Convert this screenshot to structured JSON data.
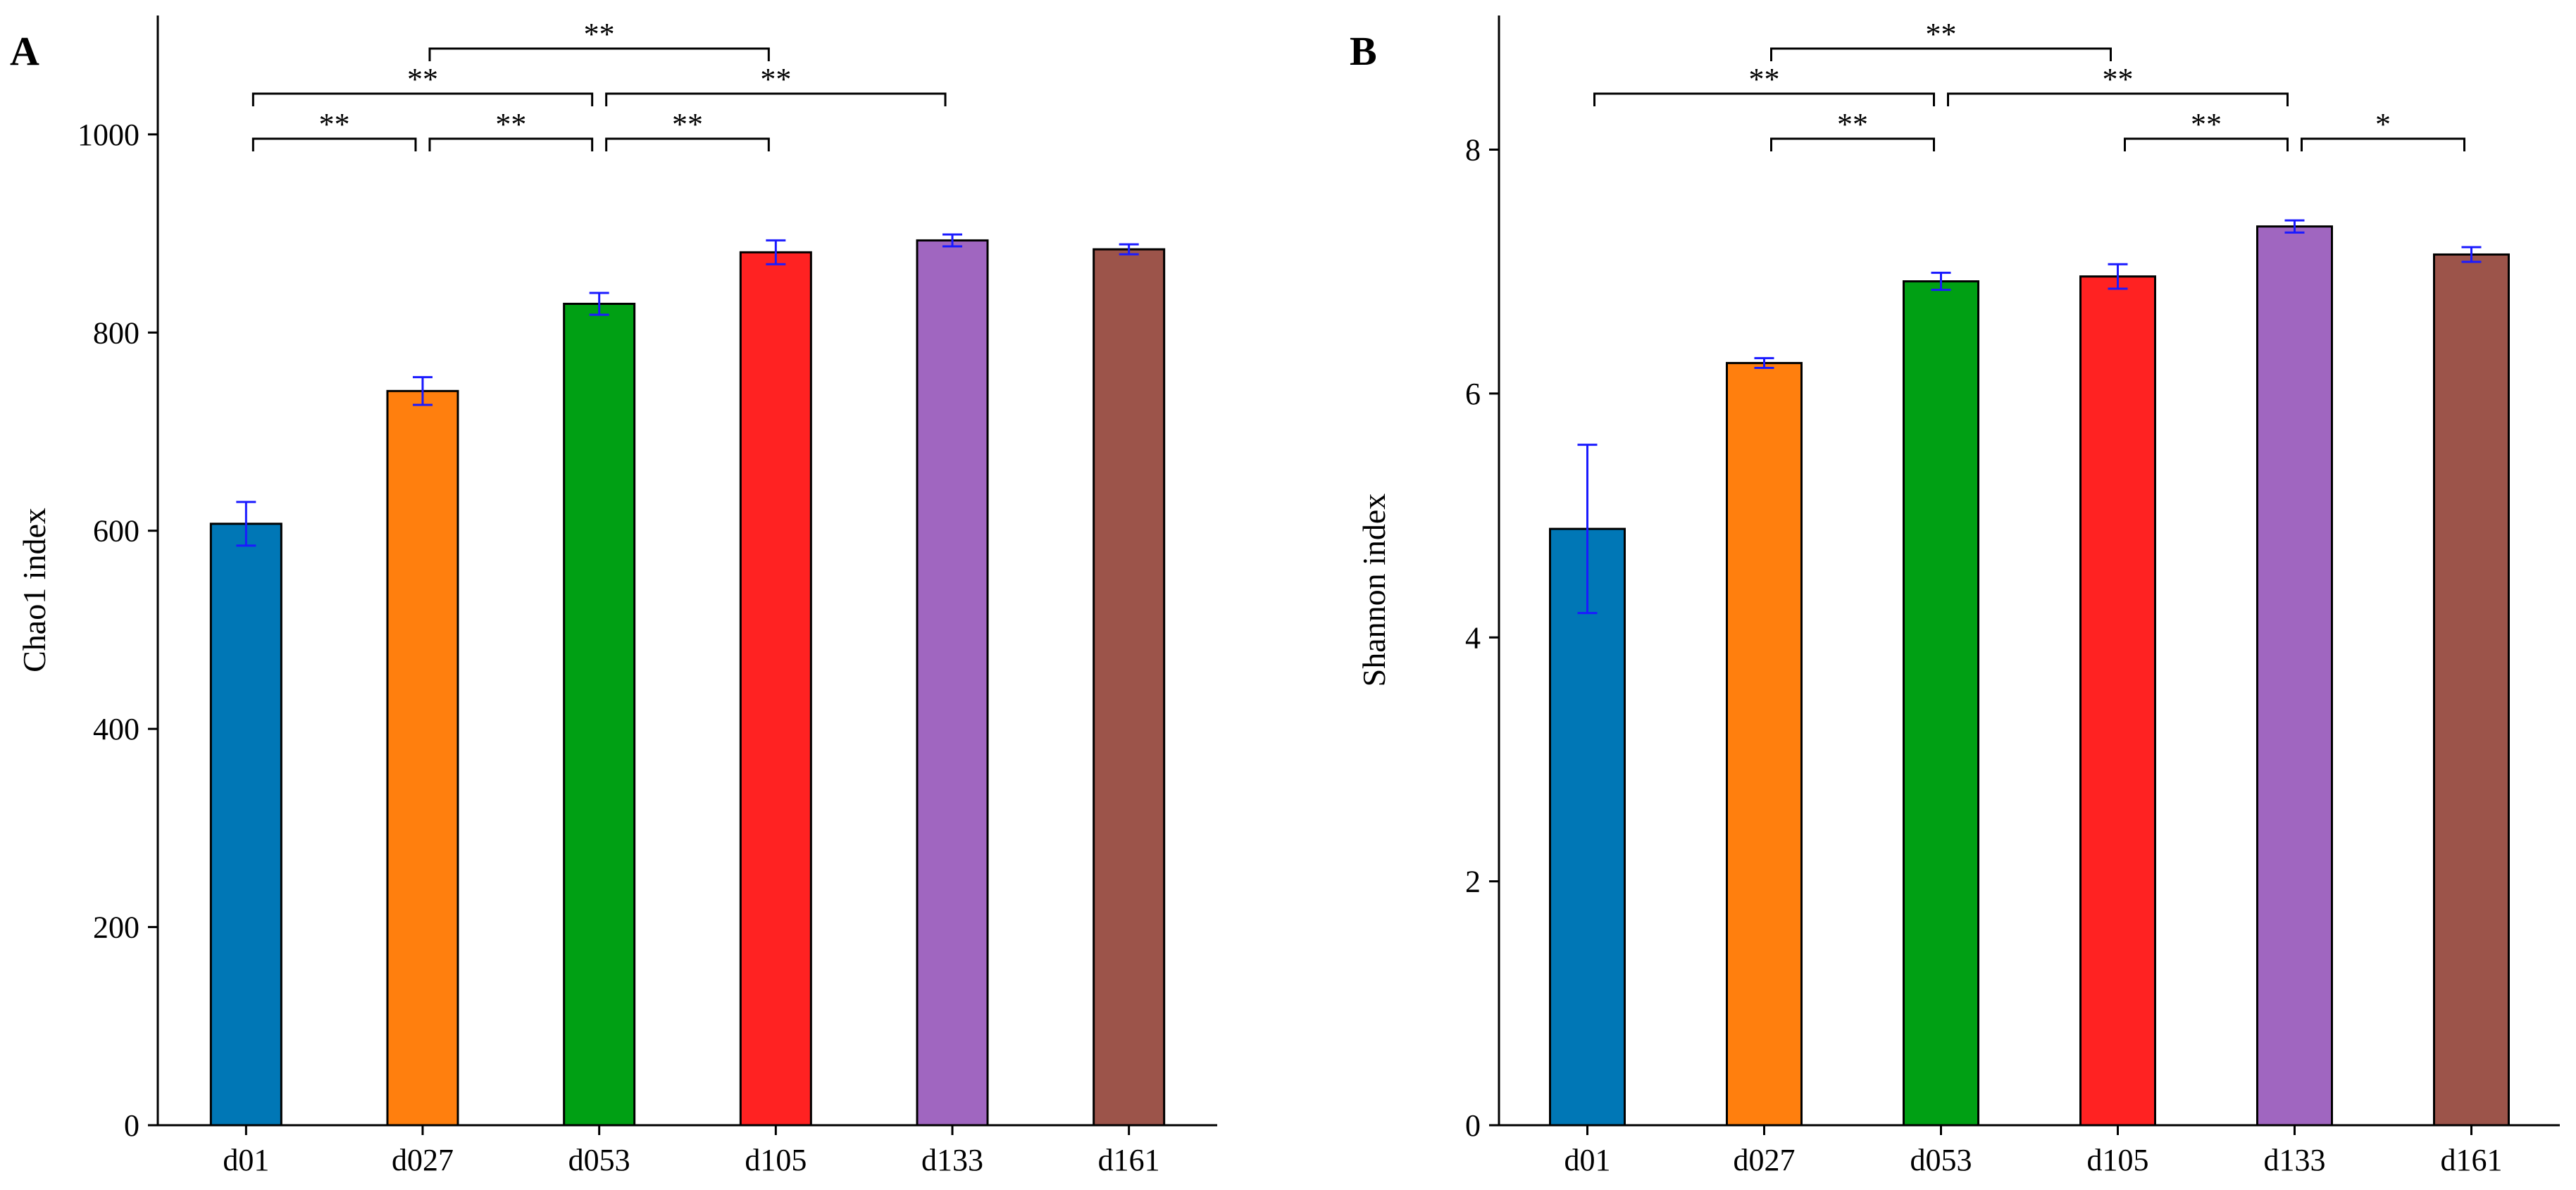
{
  "chart_data": [
    {
      "type": "bar",
      "panel_label": "A",
      "categories": [
        "d01",
        "d027",
        "d053",
        "d105",
        "d133",
        "d161"
      ],
      "values": [
        607,
        741,
        829,
        881,
        893,
        884
      ],
      "errors": [
        22,
        14,
        11,
        12,
        6,
        5
      ],
      "colors": [
        "#0077b6",
        "#ff7f0e",
        "#00a014",
        "#ff2222",
        "#a066c0",
        "#9c544a"
      ],
      "error_color": "#1a1aff",
      "ylabel": "Chao1 index",
      "xlabel": "",
      "ylim": [
        0,
        1120
      ],
      "yticks": [
        0,
        200,
        400,
        600,
        800,
        1000
      ],
      "ytick_labels": [
        "0",
        "200",
        "400",
        "600",
        "800",
        "1000"
      ],
      "significance": [
        {
          "from": "d01",
          "to": "d027",
          "level": 0,
          "label": "**"
        },
        {
          "from": "d027",
          "to": "d053",
          "level": 0,
          "label": "**"
        },
        {
          "from": "d053",
          "to": "d105",
          "level": 0,
          "label": "**"
        },
        {
          "from": "d01",
          "to": "d053",
          "level": 1,
          "label": "**"
        },
        {
          "from": "d053",
          "to": "d133",
          "level": 1,
          "label": "**"
        },
        {
          "from": "d027",
          "to": "d105",
          "level": 2,
          "label": "**"
        }
      ]
    },
    {
      "type": "bar",
      "panel_label": "B",
      "categories": [
        "d01",
        "d027",
        "d053",
        "d105",
        "d133",
        "d161"
      ],
      "values": [
        4.89,
        6.25,
        6.92,
        6.96,
        7.37,
        7.14
      ],
      "errors": [
        0.69,
        0.04,
        0.07,
        0.1,
        0.05,
        0.06
      ],
      "colors": [
        "#0077b6",
        "#ff7f0e",
        "#00a014",
        "#ff2222",
        "#a066c0",
        "#9c544a"
      ],
      "error_color": "#1a1aff",
      "ylabel": "Shannon index",
      "xlabel": "",
      "ylim": [
        0,
        9.1
      ],
      "yticks": [
        0,
        2,
        4,
        6,
        8
      ],
      "ytick_labels": [
        "0",
        "2",
        "4",
        "6",
        "8"
      ],
      "significance": [
        {
          "from": "d027",
          "to": "d053",
          "level": 0,
          "label": "**"
        },
        {
          "from": "d105",
          "to": "d133",
          "level": 0,
          "label": "**"
        },
        {
          "from": "d133",
          "to": "d161",
          "level": 0,
          "label": "*"
        },
        {
          "from": "d01",
          "to": "d053",
          "level": 1,
          "label": "**"
        },
        {
          "from": "d053",
          "to": "d133",
          "level": 1,
          "label": "**"
        },
        {
          "from": "d027",
          "to": "d105",
          "level": 2,
          "label": "**"
        }
      ]
    }
  ]
}
